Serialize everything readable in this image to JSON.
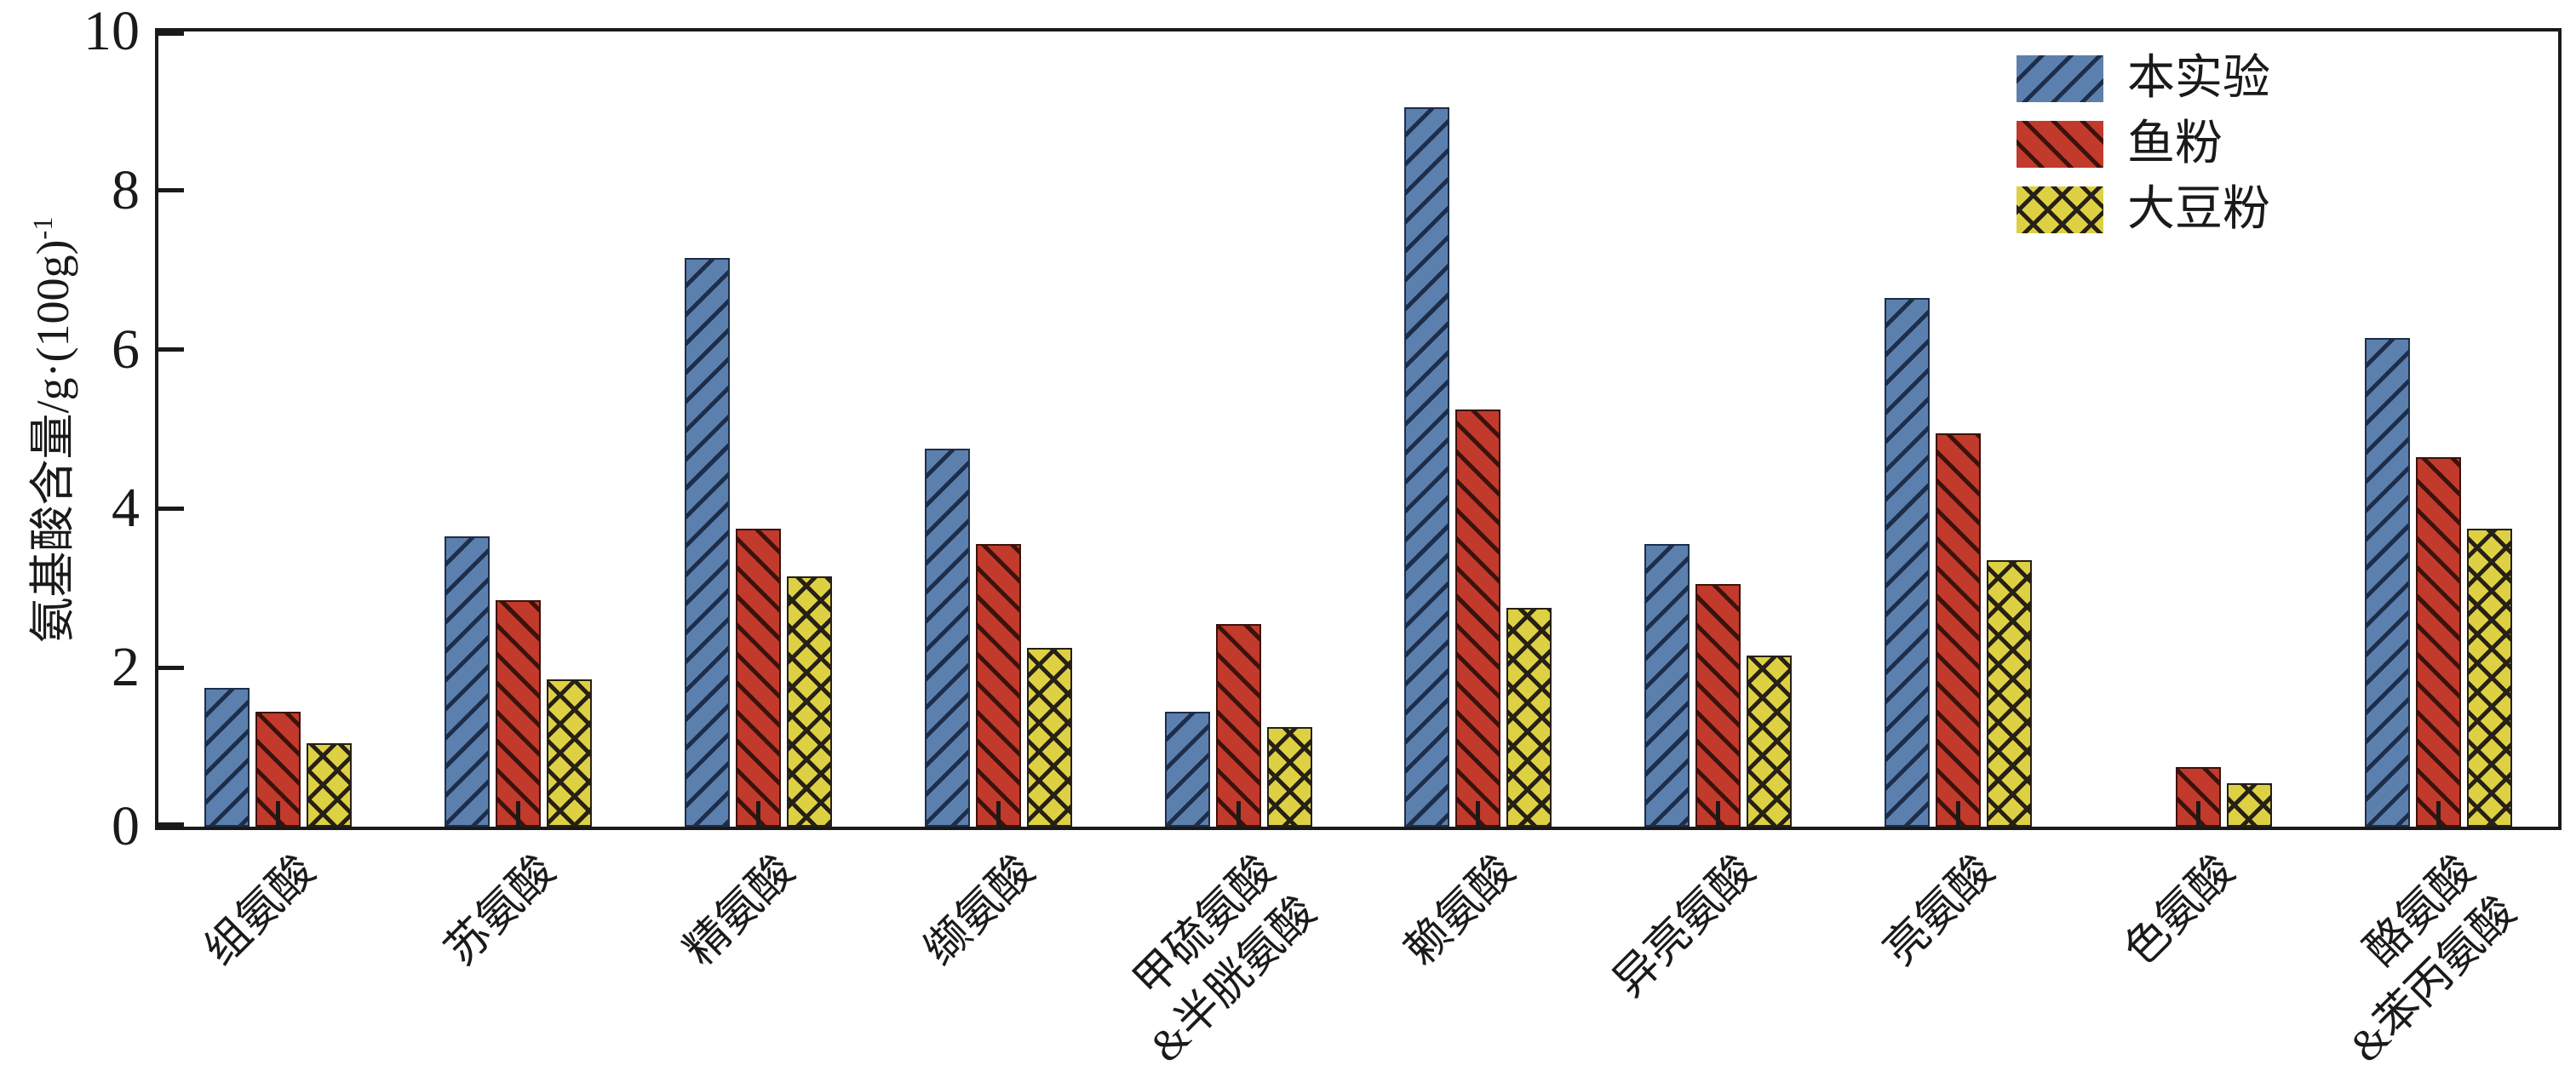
{
  "figure": {
    "background": "#ffffff",
    "axis_color": "#1a1a1a"
  },
  "y_axis": {
    "label_base": "氨基酸含量/g·(100g)",
    "label_superscript": "-1",
    "min": 0,
    "max": 10
  },
  "chart_data": {
    "type": "bar",
    "title": "",
    "xlabel": "",
    "ylabel": "氨基酸含量/g·(100g)⁻¹",
    "ylim": [
      0,
      10
    ],
    "yticks": [
      0,
      2,
      4,
      6,
      8,
      10
    ],
    "grid": false,
    "legend_position": "upper right",
    "categories": [
      "组氨酸",
      "苏氨酸",
      "精氨酸",
      "缬氨酸",
      "甲硫氨酸\n&半胱氨酸",
      "赖氨酸",
      "异亮氨酸",
      "亮氨酸",
      "色氨酸",
      "酪氨酸\n&苯丙氨酸"
    ],
    "series": [
      {
        "name": "本实验",
        "color": "#5c80ae",
        "hatch": "/",
        "hatch_color": "#1d2e4a",
        "values": [
          1.75,
          3.65,
          7.15,
          4.75,
          1.45,
          9.05,
          3.55,
          6.65,
          null,
          6.15
        ]
      },
      {
        "name": "鱼粉",
        "color": "#c13a2c",
        "hatch": "\\",
        "hatch_color": "#3c120c",
        "values": [
          1.45,
          2.85,
          3.75,
          3.55,
          2.55,
          5.25,
          3.05,
          4.95,
          0.75,
          4.65
        ]
      },
      {
        "name": "大豆粉",
        "color": "#ddd043",
        "hatch": "x",
        "hatch_color": "#262015",
        "values": [
          1.05,
          1.85,
          3.15,
          2.25,
          1.25,
          2.75,
          2.15,
          3.35,
          0.55,
          3.75
        ]
      }
    ]
  }
}
